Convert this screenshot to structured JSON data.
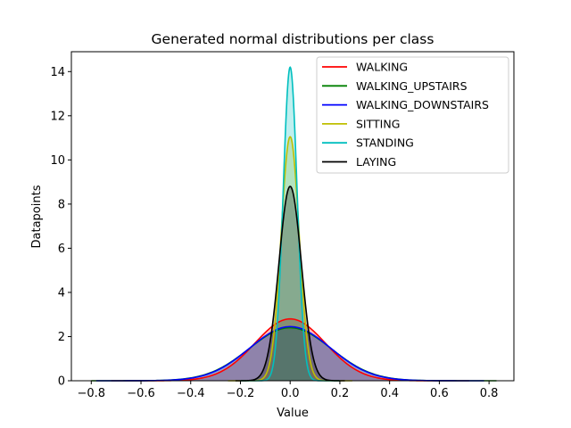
{
  "chart_data": {
    "type": "area",
    "title": "Generated normal distributions per class",
    "xlabel": "Value",
    "ylabel": "Datapoints",
    "xlim": [
      -0.88,
      0.9
    ],
    "ylim": [
      0,
      14.9
    ],
    "xticks": [
      -0.8,
      -0.6,
      -0.4,
      -0.2,
      0.0,
      0.2,
      0.4,
      0.6,
      0.8
    ],
    "xtick_labels": [
      "−0.8",
      "−0.6",
      "−0.4",
      "−0.2",
      "0.0",
      "0.2",
      "0.4",
      "0.6",
      "0.8"
    ],
    "yticks": [
      0,
      2,
      4,
      6,
      8,
      10,
      12,
      14
    ],
    "ytick_labels": [
      "0",
      "2",
      "4",
      "6",
      "8",
      "10",
      "12",
      "14"
    ],
    "grid": false,
    "legend_position": "top-right",
    "series": [
      {
        "name": "WALKING",
        "color": "#ff0000",
        "peak": 2.8,
        "mean": 0.0,
        "sd": 0.142,
        "xmin": -0.72,
        "xmax": 0.72
      },
      {
        "name": "WALKING_UPSTAIRS",
        "color": "#008000",
        "peak": 2.4,
        "mean": 0.0,
        "sd": 0.165,
        "xmin": -0.8,
        "xmax": 0.83
      },
      {
        "name": "WALKING_DOWNSTAIRS",
        "color": "#0000ff",
        "peak": 2.45,
        "mean": 0.0,
        "sd": 0.162,
        "xmin": -0.78,
        "xmax": 0.78
      },
      {
        "name": "SITTING",
        "color": "#bfbf00",
        "peak": 11.05,
        "mean": 0.0,
        "sd": 0.036,
        "xmin": -0.25,
        "xmax": 0.25
      },
      {
        "name": "STANDING",
        "color": "#00bfbf",
        "peak": 14.2,
        "mean": 0.0,
        "sd": 0.028,
        "xmin": -0.2,
        "xmax": 0.2
      },
      {
        "name": "LAYING",
        "color": "#000000",
        "peak": 8.8,
        "mean": 0.0,
        "sd": 0.045,
        "xmin": -0.22,
        "xmax": 0.22
      }
    ]
  }
}
